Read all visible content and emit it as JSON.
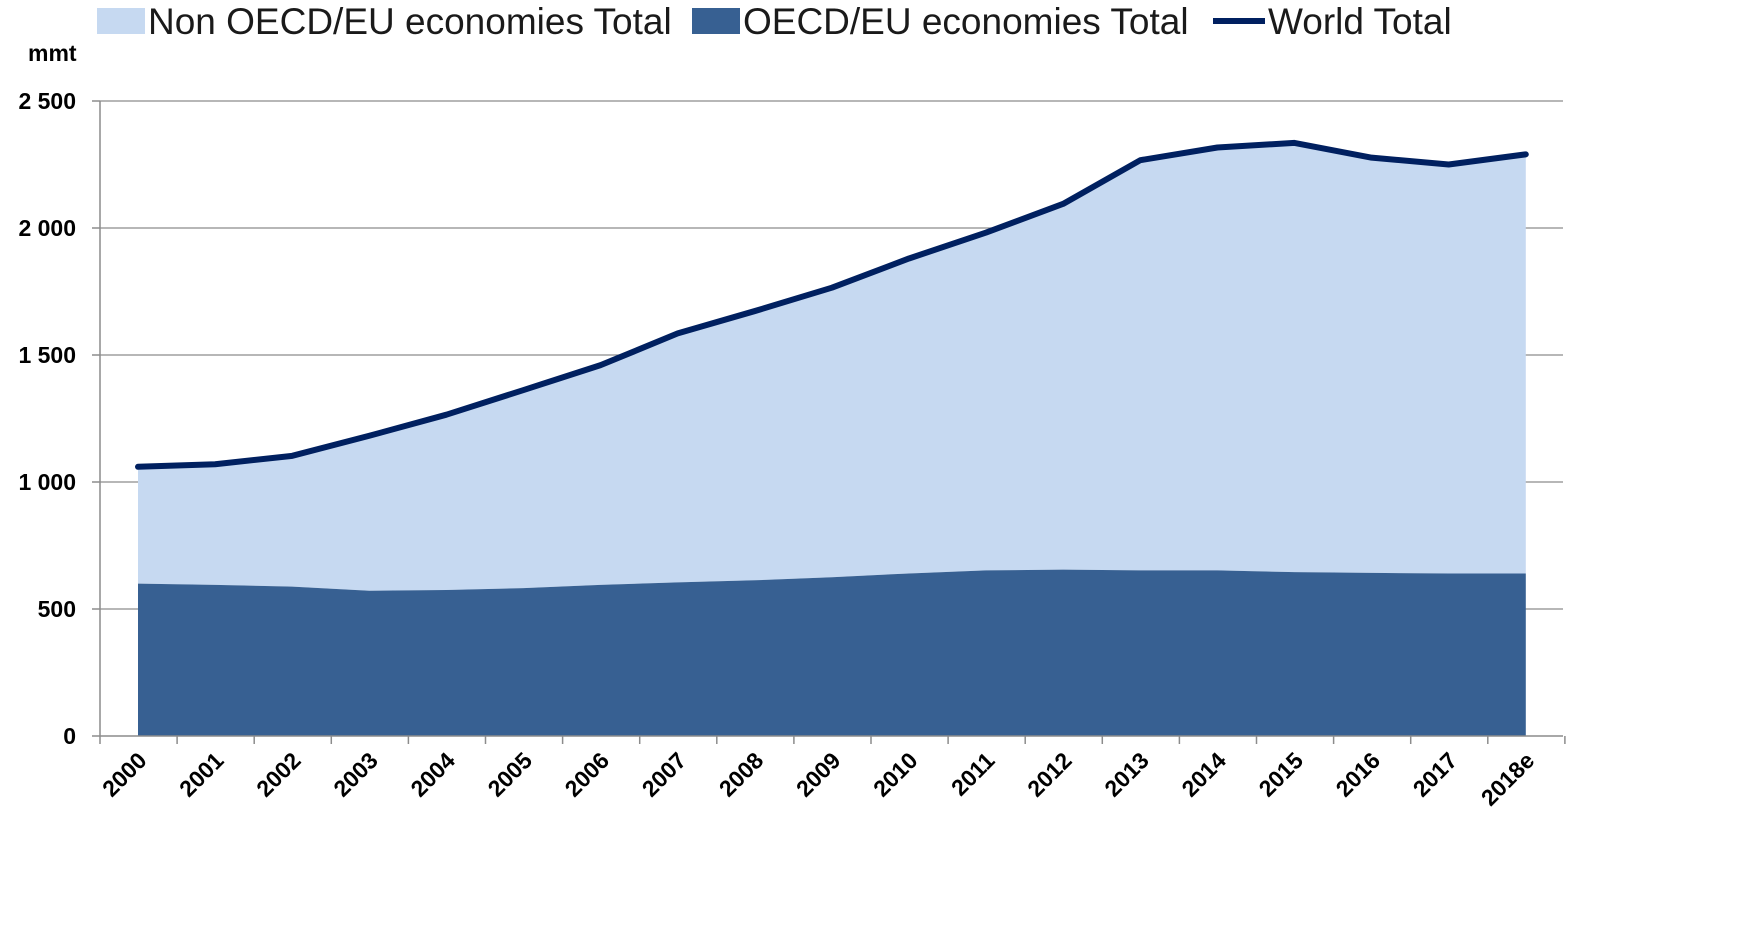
{
  "chart_data": {
    "type": "area",
    "unit_label": "mmt",
    "categories": [
      "2000",
      "2001",
      "2002",
      "2003",
      "2004",
      "2005",
      "2006",
      "2007",
      "2008",
      "2009",
      "2010",
      "2011",
      "2012",
      "2013",
      "2014",
      "2015",
      "2016",
      "2017",
      "2018e"
    ],
    "series": [
      {
        "name": "Non OECD/EU economies Total",
        "kind": "area",
        "color": "#c6d9f1",
        "values": [
          460,
          475,
          515,
          610,
          690,
          780,
          865,
          980,
          1060,
          1140,
          1240,
          1330,
          1440,
          1615,
          1665,
          1690,
          1635,
          1610,
          1650
        ]
      },
      {
        "name": "OECD/EU economies Total",
        "kind": "area",
        "color": "#376092",
        "values": [
          600,
          595,
          588,
          572,
          575,
          582,
          595,
          605,
          613,
          625,
          640,
          652,
          655,
          652,
          652,
          645,
          642,
          640,
          640
        ]
      },
      {
        "name": "World Total",
        "kind": "line",
        "color": "#002060",
        "values": [
          1060,
          1070,
          1103,
          1182,
          1265,
          1362,
          1460,
          1585,
          1673,
          1765,
          1880,
          1982,
          2095,
          2267,
          2317,
          2335,
          2277,
          2250,
          2290
        ]
      }
    ],
    "y_ticks": [
      "0",
      "500",
      "1 000",
      "1 500",
      "2 000",
      "2 500"
    ],
    "ylim": [
      0,
      2500
    ],
    "grid": true,
    "legend_placement": "top"
  }
}
